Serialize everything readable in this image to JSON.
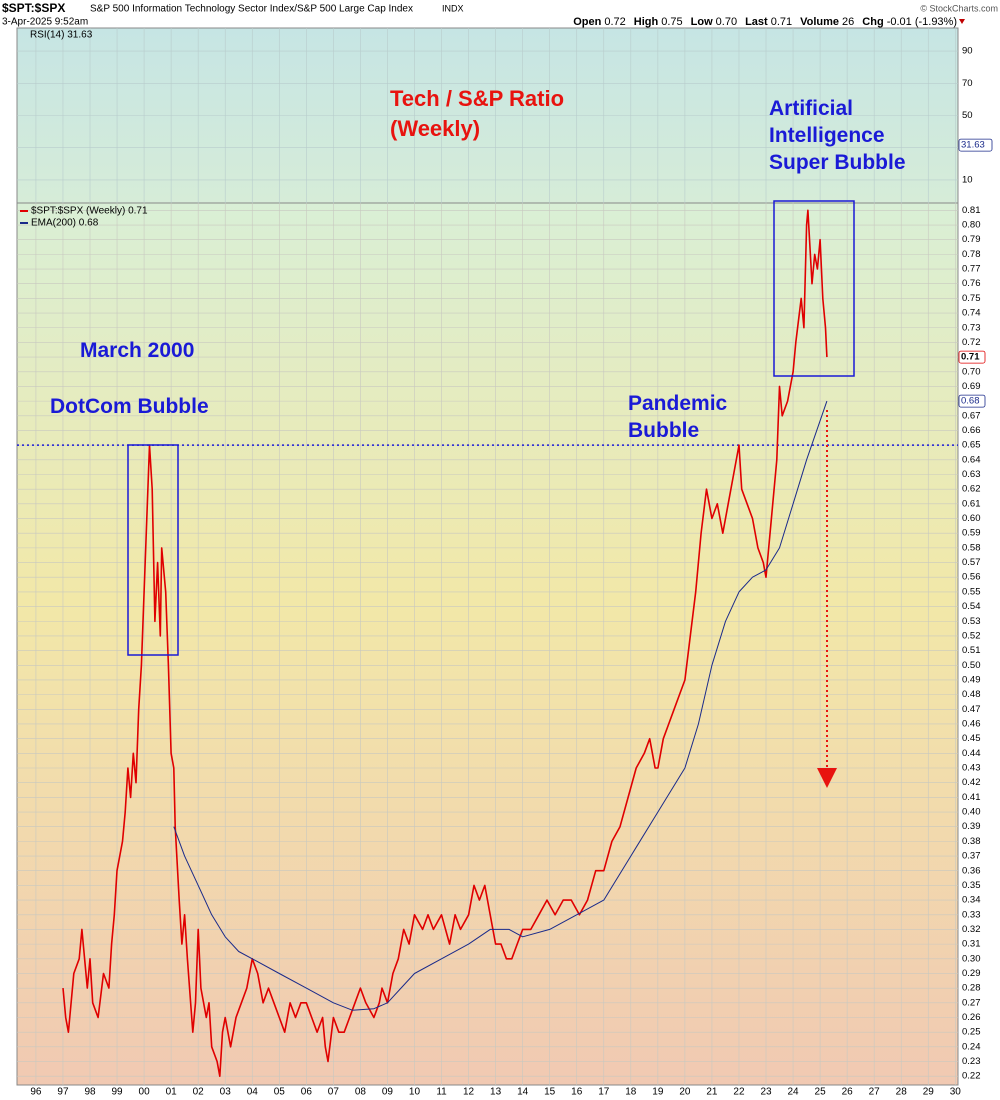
{
  "header": {
    "symbol": "$SPT:$SPX",
    "title": "S&P 500 Information Technology Sector Index/S&P 500 Large Cap Index",
    "exchange": "INDX",
    "date": "3-Apr-2025 9:52am",
    "copyright": "© StockCharts.com",
    "quote": [
      {
        "label": "Open",
        "value": "0.72"
      },
      {
        "label": "High",
        "value": "0.75"
      },
      {
        "label": "Low",
        "value": "0.70"
      },
      {
        "label": "Last",
        "value": "0.71"
      },
      {
        "label": "Volume",
        "value": "26"
      },
      {
        "label": "Chg",
        "value": "-0.01 (-1.93%)"
      }
    ]
  },
  "chart_data": {
    "type": "line",
    "annotations": {
      "title": [
        "Tech / S&P Ratio",
        "(Weekly)"
      ],
      "march": "March 2000",
      "dotcom": "DotCom Bubble",
      "pandemic": [
        "Pandemic",
        "Bubble"
      ],
      "ai": [
        "Artificial",
        "Intelligence",
        "Super Bubble"
      ]
    },
    "xlim": [
      1995.3,
      2030.1
    ],
    "xticks": [
      {
        "value": 1996,
        "label": "96"
      },
      {
        "value": 1997,
        "label": "97"
      },
      {
        "value": 1998,
        "label": "98"
      },
      {
        "value": 1999,
        "label": "99"
      },
      {
        "value": 2000,
        "label": "00"
      },
      {
        "value": 2001,
        "label": "01"
      },
      {
        "value": 2002,
        "label": "02"
      },
      {
        "value": 2003,
        "label": "03"
      },
      {
        "value": 2004,
        "label": "04"
      },
      {
        "value": 2005,
        "label": "05"
      },
      {
        "value": 2006,
        "label": "06"
      },
      {
        "value": 2007,
        "label": "07"
      },
      {
        "value": 2008,
        "label": "08"
      },
      {
        "value": 2009,
        "label": "09"
      },
      {
        "value": 2010,
        "label": "10"
      },
      {
        "value": 2011,
        "label": "11"
      },
      {
        "value": 2012,
        "label": "12"
      },
      {
        "value": 2013,
        "label": "13"
      },
      {
        "value": 2014,
        "label": "14"
      },
      {
        "value": 2015,
        "label": "15"
      },
      {
        "value": 2016,
        "label": "16"
      },
      {
        "value": 2017,
        "label": "17"
      },
      {
        "value": 2018,
        "label": "18"
      },
      {
        "value": 2019,
        "label": "19"
      },
      {
        "value": 2020,
        "label": "20"
      },
      {
        "value": 2021,
        "label": "21"
      },
      {
        "value": 2022,
        "label": "22"
      },
      {
        "value": 2023,
        "label": "23"
      },
      {
        "value": 2024,
        "label": "24"
      },
      {
        "value": 2025,
        "label": "25"
      },
      {
        "value": 2026,
        "label": "26"
      },
      {
        "value": 2027,
        "label": "27"
      },
      {
        "value": 2028,
        "label": "28"
      },
      {
        "value": 2029,
        "label": "29"
      },
      {
        "value": 2030,
        "label": "30"
      }
    ],
    "ylim": [
      0.214,
      0.815
    ],
    "yticks": [
      0.22,
      0.23,
      0.24,
      0.25,
      0.26,
      0.27,
      0.28,
      0.29,
      {
        "value": 0.3,
        "label": "0.30"
      },
      0.31,
      0.32,
      0.33,
      0.34,
      0.35,
      0.36,
      0.37,
      0.38,
      0.39,
      {
        "value": 0.4,
        "label": "0.40"
      },
      0.41,
      0.42,
      0.43,
      0.44,
      0.45,
      0.46,
      0.47,
      0.48,
      0.49,
      {
        "value": 0.5,
        "label": "0.50"
      },
      0.51,
      0.52,
      0.53,
      0.54,
      0.55,
      0.56,
      0.57,
      0.58,
      0.59,
      {
        "value": 0.6,
        "label": "0.60"
      },
      0.61,
      0.62,
      0.63,
      0.64,
      0.65,
      0.66,
      0.67,
      0.68,
      0.69,
      {
        "value": 0.7,
        "label": "0.70"
      },
      0.71,
      0.72,
      0.73,
      0.74,
      0.75,
      0.76,
      0.77,
      0.78,
      0.79,
      {
        "value": 0.8,
        "label": "0.80"
      },
      0.81
    ],
    "grid": true,
    "hline": 0.65,
    "series": [
      {
        "name": "$SPT:$SPX (Weekly) 0.71",
        "color": "#e00000",
        "tag": "0.71",
        "x": [
          1997.0,
          1997.1,
          1997.2,
          1997.4,
          1997.6,
          1997.7,
          1997.9,
          1998.0,
          1998.1,
          1998.3,
          1998.5,
          1998.7,
          1998.8,
          1998.9,
          1999.0,
          1999.2,
          1999.3,
          1999.4,
          1999.5,
          1999.6,
          1999.7,
          1999.8,
          1999.9,
          2000.0,
          2000.1,
          2000.2,
          2000.3,
          2000.4,
          2000.5,
          2000.6,
          2000.65,
          2000.8,
          2000.9,
          2001.0,
          2001.1,
          2001.15,
          2001.3,
          2001.4,
          2001.5,
          2001.6,
          2001.8,
          2001.9,
          2002.0,
          2002.1,
          2002.3,
          2002.4,
          2002.5,
          2002.7,
          2002.8,
          2002.9,
          2003.0,
          2003.2,
          2003.4,
          2003.6,
          2003.8,
          2004.0,
          2004.2,
          2004.4,
          2004.6,
          2004.8,
          2005.0,
          2005.2,
          2005.4,
          2005.6,
          2005.8,
          2006.0,
          2006.2,
          2006.4,
          2006.6,
          2006.7,
          2006.8,
          2007.0,
          2007.2,
          2007.4,
          2007.6,
          2007.8,
          2008.0,
          2008.2,
          2008.5,
          2008.7,
          2008.8,
          2009.0,
          2009.2,
          2009.4,
          2009.6,
          2009.8,
          2010.0,
          2010.3,
          2010.5,
          2010.7,
          2011.0,
          2011.3,
          2011.5,
          2011.7,
          2012.0,
          2012.2,
          2012.4,
          2012.6,
          2012.8,
          2013.0,
          2013.2,
          2013.4,
          2013.6,
          2013.8,
          2014.0,
          2014.3,
          2014.6,
          2014.9,
          2015.2,
          2015.5,
          2015.8,
          2016.1,
          2016.4,
          2016.7,
          2017.0,
          2017.3,
          2017.6,
          2017.9,
          2018.2,
          2018.5,
          2018.7,
          2018.9,
          2019.0,
          2019.2,
          2019.4,
          2019.6,
          2019.8,
          2020.0,
          2020.2,
          2020.4,
          2020.6,
          2020.8,
          2021.0,
          2021.2,
          2021.4,
          2021.6,
          2021.8,
          2022.0,
          2022.1,
          2022.3,
          2022.5,
          2022.7,
          2022.9,
          2023.0,
          2023.2,
          2023.4,
          2023.5,
          2023.6,
          2023.8,
          2024.0,
          2024.1,
          2024.3,
          2024.4,
          2024.5,
          2024.55,
          2024.7,
          2024.8,
          2024.9,
          2025.0,
          2025.1,
          2025.2,
          2025.25
        ],
        "values": [
          0.28,
          0.26,
          0.25,
          0.29,
          0.3,
          0.32,
          0.28,
          0.3,
          0.27,
          0.26,
          0.29,
          0.28,
          0.31,
          0.33,
          0.36,
          0.38,
          0.4,
          0.43,
          0.41,
          0.44,
          0.42,
          0.47,
          0.5,
          0.55,
          0.6,
          0.65,
          0.62,
          0.53,
          0.57,
          0.52,
          0.58,
          0.55,
          0.5,
          0.44,
          0.43,
          0.39,
          0.34,
          0.31,
          0.33,
          0.3,
          0.25,
          0.27,
          0.32,
          0.28,
          0.26,
          0.27,
          0.24,
          0.23,
          0.22,
          0.25,
          0.26,
          0.24,
          0.26,
          0.27,
          0.28,
          0.3,
          0.29,
          0.27,
          0.28,
          0.27,
          0.26,
          0.25,
          0.27,
          0.26,
          0.27,
          0.27,
          0.26,
          0.25,
          0.26,
          0.24,
          0.23,
          0.26,
          0.25,
          0.25,
          0.26,
          0.27,
          0.28,
          0.27,
          0.26,
          0.27,
          0.28,
          0.27,
          0.29,
          0.3,
          0.32,
          0.31,
          0.33,
          0.32,
          0.33,
          0.32,
          0.33,
          0.31,
          0.33,
          0.32,
          0.33,
          0.35,
          0.34,
          0.35,
          0.33,
          0.31,
          0.31,
          0.3,
          0.3,
          0.31,
          0.32,
          0.32,
          0.33,
          0.34,
          0.33,
          0.34,
          0.34,
          0.33,
          0.34,
          0.36,
          0.36,
          0.38,
          0.39,
          0.41,
          0.43,
          0.44,
          0.45,
          0.43,
          0.43,
          0.45,
          0.46,
          0.47,
          0.48,
          0.49,
          0.52,
          0.55,
          0.59,
          0.62,
          0.6,
          0.61,
          0.59,
          0.61,
          0.63,
          0.65,
          0.62,
          0.61,
          0.6,
          0.58,
          0.57,
          0.56,
          0.6,
          0.64,
          0.69,
          0.67,
          0.68,
          0.7,
          0.72,
          0.75,
          0.73,
          0.8,
          0.81,
          0.76,
          0.78,
          0.77,
          0.79,
          0.75,
          0.73,
          0.71
        ]
      },
      {
        "name": "EMA(200) 0.68",
        "color": "#1a2a8a",
        "tag": "0.68",
        "x": [
          2001.1,
          2001.5,
          2002.0,
          2002.5,
          2003.0,
          2003.5,
          2004.0,
          2005.0,
          2006.0,
          2007.0,
          2007.7,
          2008.5,
          2009.0,
          2009.5,
          2010.0,
          2011.0,
          2012.0,
          2012.8,
          2013.5,
          2014.0,
          2015.0,
          2016.0,
          2017.0,
          2018.0,
          2019.0,
          2020.0,
          2020.5,
          2021.0,
          2021.5,
          2022.0,
          2022.5,
          2023.0,
          2023.5,
          2024.0,
          2024.5,
          2025.25
        ],
        "values": [
          0.39,
          0.37,
          0.35,
          0.33,
          0.315,
          0.305,
          0.3,
          0.29,
          0.28,
          0.27,
          0.265,
          0.266,
          0.27,
          0.28,
          0.29,
          0.3,
          0.31,
          0.32,
          0.32,
          0.315,
          0.32,
          0.33,
          0.34,
          0.37,
          0.4,
          0.43,
          0.46,
          0.5,
          0.53,
          0.55,
          0.56,
          0.565,
          0.58,
          0.61,
          0.64,
          0.68
        ]
      }
    ],
    "rsi": {
      "name": "RSI(14) 31.63",
      "value": 31.63,
      "ylim": [
        -4.3,
        104.3
      ],
      "yticks": [
        10,
        30,
        50,
        70,
        90
      ]
    }
  }
}
